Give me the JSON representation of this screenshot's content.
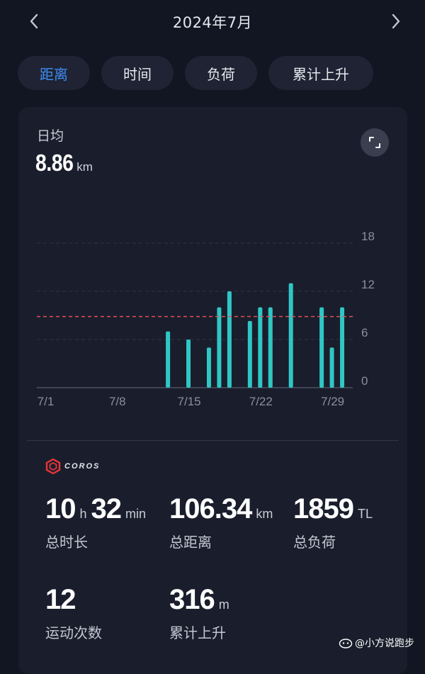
{
  "header": {
    "month_title": "2024年7月",
    "prev_icon": "chevron-left-icon",
    "next_icon": "chevron-right-icon"
  },
  "tabs": [
    {
      "label": "距离",
      "active": true
    },
    {
      "label": "时间",
      "active": false
    },
    {
      "label": "负荷",
      "active": false
    },
    {
      "label": "累计上升",
      "active": false
    }
  ],
  "summary": {
    "avg_label": "日均",
    "avg_value": "8.86",
    "avg_unit": "km",
    "expand_icon": "expand-icon"
  },
  "chart_data": {
    "type": "bar",
    "x_tick_labels": [
      "7/1",
      "7/8",
      "7/15",
      "7/22",
      "7/29"
    ],
    "y_tick_labels": [
      "18",
      "12",
      "6",
      "0"
    ],
    "ylim": [
      0,
      18
    ],
    "grid": true,
    "average_line": 8.86,
    "bar_color": "#2fc7c5",
    "average_line_color": "#e0505a",
    "days": [
      13,
      15,
      17,
      18,
      19,
      21,
      22,
      23,
      25,
      28,
      29,
      30
    ],
    "values": [
      7.0,
      6.0,
      5.0,
      10.0,
      12.0,
      8.3,
      10.0,
      10.0,
      13.0,
      10.0,
      5.0,
      10.0
    ]
  },
  "brand": {
    "logo_text": "COROS",
    "logo_icon": "coros-hexagon-icon"
  },
  "stats": {
    "total_time": {
      "hours": "10",
      "h_unit": "h",
      "minutes": "32",
      "min_unit": "min",
      "label": "总时长"
    },
    "total_distance": {
      "value": "106.34",
      "unit": "km",
      "label": "总距离"
    },
    "total_load": {
      "value": "1859",
      "unit": "TL",
      "label": "总负荷"
    },
    "activity_count": {
      "value": "12",
      "label": "运动次数"
    },
    "total_ascent": {
      "value": "316",
      "unit": "m",
      "label": "累计上升"
    }
  },
  "watermark": {
    "text": "@小方说跑步",
    "icon": "toutiao-icon"
  }
}
